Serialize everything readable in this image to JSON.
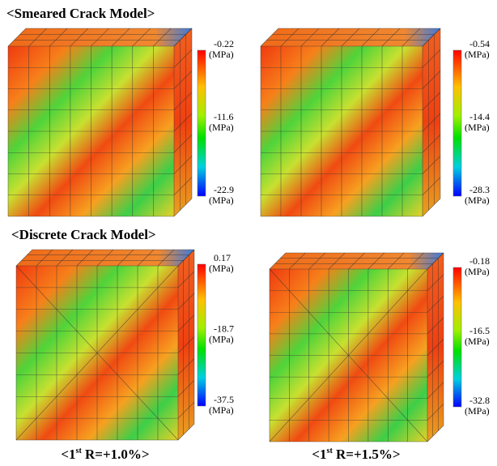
{
  "sections": [
    {
      "title": "<Smeared Crack Model>",
      "panels": [
        {
          "legend": [
            {
              "value": "-0.22",
              "unit": "(MPa)"
            },
            {
              "value": "-11.6",
              "unit": "(MPa)"
            },
            {
              "value": "-22.9",
              "unit": "(MPa)"
            }
          ]
        },
        {
          "legend": [
            {
              "value": "-0.54",
              "unit": "(MPa)"
            },
            {
              "value": "-14.4",
              "unit": "(MPa)"
            },
            {
              "value": "-28.3",
              "unit": "(MPa)"
            }
          ]
        }
      ]
    },
    {
      "title": "<Discrete Crack Model>",
      "panels": [
        {
          "legend": [
            {
              "value": "0.17",
              "unit": "(MPa)"
            },
            {
              "value": "-18.7",
              "unit": "(MPa)"
            },
            {
              "value": "-37.5",
              "unit": "(MPa)"
            }
          ]
        },
        {
          "legend": [
            {
              "value": "-0.18",
              "unit": "(MPa)"
            },
            {
              "value": "-16.5",
              "unit": "(MPa)"
            },
            {
              "value": "-32.8",
              "unit": "(MPa)"
            }
          ]
        }
      ]
    }
  ],
  "captions": [
    {
      "prefix": "<1",
      "sup": "st",
      "rest": " R=+1.0%>"
    },
    {
      "prefix": "<1",
      "sup": "st",
      "rest": " R=+1.5%>"
    }
  ]
}
